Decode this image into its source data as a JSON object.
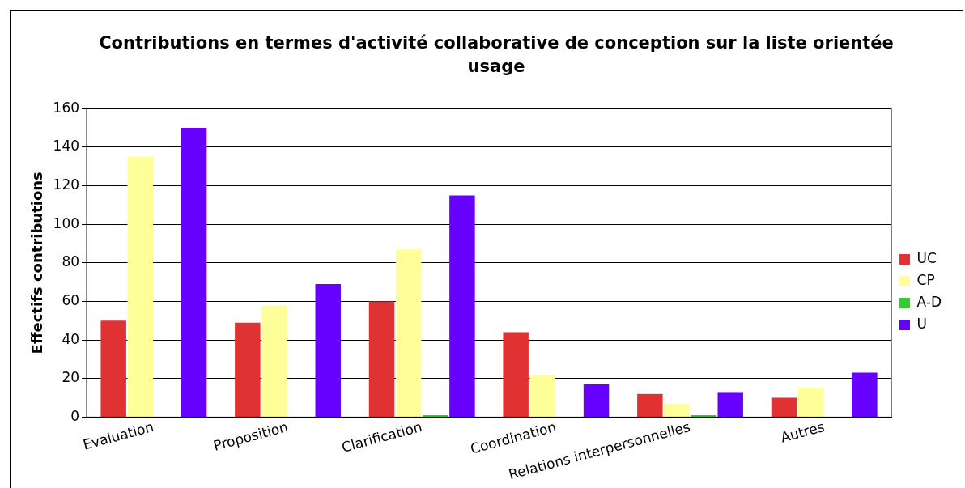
{
  "chart_data": {
    "type": "bar",
    "title": "Contributions en termes d'activité collaborative de conception sur la liste orientée usage",
    "ylabel": "Effectifs contributions",
    "categories": [
      "Evaluation",
      "Proposition",
      "Clarification",
      "Coordination",
      "Relations interpersonnelles",
      "Autres"
    ],
    "series": [
      {
        "name": "UC",
        "color": "#e03232",
        "values": [
          50,
          49,
          60,
          44,
          12,
          10
        ]
      },
      {
        "name": "CP",
        "color": "#ffff99",
        "values": [
          135,
          58,
          87,
          22,
          7,
          15
        ]
      },
      {
        "name": "A-D",
        "color": "#33cc33",
        "values": [
          0,
          0,
          1,
          0,
          1,
          0
        ]
      },
      {
        "name": "U",
        "color": "#6600ff",
        "values": [
          150,
          69,
          115,
          17,
          13,
          23
        ]
      }
    ],
    "ylim": [
      0,
      160
    ],
    "yticks": [
      0,
      20,
      40,
      60,
      80,
      100,
      120,
      140,
      160
    ],
    "grid": "y",
    "legend": "right"
  }
}
